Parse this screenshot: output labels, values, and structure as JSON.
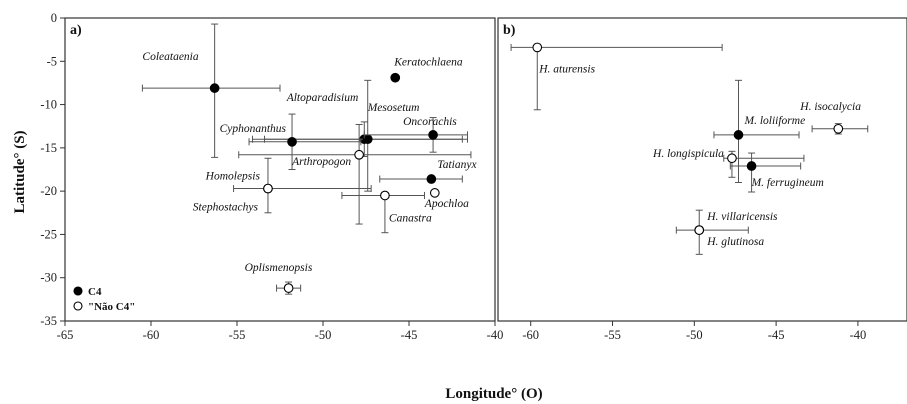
{
  "chart_data": {
    "type": "scatter",
    "xlabel": "Longitude° (O)",
    "ylabel": "Latitude° (S)",
    "xlim": [
      -65,
      -37
    ],
    "ylim": [
      -35,
      0
    ],
    "x_ticks": [
      "-65",
      "-60",
      "-55",
      "-50",
      "-45",
      "-40"
    ],
    "x_ticks_b": [
      "-60",
      "-55",
      "-50",
      "-45",
      "-40"
    ],
    "y_ticks": [
      "0",
      "-5",
      "-10",
      "-15",
      "-20",
      "-25",
      "-30",
      "-35"
    ],
    "legend": {
      "placement": "bottom-left",
      "entries": [
        {
          "label": "C4",
          "marker": "filled"
        },
        {
          "label": "\"Não C4\"",
          "marker": "open"
        }
      ]
    },
    "panels": [
      {
        "id": "a",
        "label": "a)",
        "xlim": [
          -65,
          -40
        ],
        "points": [
          {
            "name": "Coleataenia",
            "x": -56.3,
            "y": -8.1,
            "xerr": [
              4.2,
              3.8
            ],
            "yerr": [
              7.4,
              8.0
            ],
            "group": "C4"
          },
          {
            "name": "Keratochlaena",
            "x": -45.8,
            "y": -6.9,
            "xerr": [
              0,
              0
            ],
            "yerr": [
              0,
              0
            ],
            "group": "C4"
          },
          {
            "name": "Altoparadisium",
            "x": -47.6,
            "y": -14.0,
            "xerr": [
              6.5,
              6.0
            ],
            "yerr": [
              2.0,
              2.0
            ],
            "group": "C4"
          },
          {
            "name": "Mesosetum",
            "x": -47.4,
            "y": -14.0,
            "xerr": [
              6.0,
              5.5
            ],
            "yerr": [
              6.8,
              6.0
            ],
            "group": "C4"
          },
          {
            "name": "Cyphonanthus",
            "x": -51.8,
            "y": -14.3,
            "xerr": [
              2.5,
              4.0
            ],
            "yerr": [
              3.2,
              3.2
            ],
            "group": "C4"
          },
          {
            "name": "Oncorachis",
            "x": -43.6,
            "y": -13.5,
            "xerr": [
              4.0,
              2.0
            ],
            "yerr": [
              2.0,
              2.0
            ],
            "group": "C4"
          },
          {
            "name": "Tatianyx",
            "x": -43.7,
            "y": -18.6,
            "xerr": [
              3.0,
              1.8
            ],
            "yerr": [
              0,
              0
            ],
            "group": "C4"
          },
          {
            "name": "Arthropogon",
            "x": -47.9,
            "y": -15.8,
            "xerr": [
              7.0,
              6.5
            ],
            "yerr": [
              3.5,
              8.0
            ],
            "group": "Não C4"
          },
          {
            "name": "Homolepsis",
            "x": -53.2,
            "y": -19.7,
            "xerr": [
              2.0,
              6.0
            ],
            "yerr": [
              3.5,
              2.8
            ],
            "group": "Não C4"
          },
          {
            "name": "Canastra",
            "x": -46.4,
            "y": -20.5,
            "xerr": [
              2.5,
              2.3
            ],
            "yerr": [
              0,
              4.3
            ],
            "group": "Não C4"
          },
          {
            "name": "Apochloa",
            "x": -43.5,
            "y": -20.2,
            "xerr": [
              0,
              0
            ],
            "yerr": [
              0,
              0
            ],
            "group": "Não C4"
          },
          {
            "name": "Stephostachys",
            "x": -53.2,
            "y": -19.7,
            "xerr": [
              0,
              0
            ],
            "yerr": [
              0,
              0
            ],
            "group": "Não C4"
          },
          {
            "name": "Oplismenopsis",
            "x": -52.0,
            "y": -31.2,
            "xerr": [
              0.7,
              0.7
            ],
            "yerr": [
              0.7,
              0.7
            ],
            "group": "Não C4"
          }
        ]
      },
      {
        "id": "b",
        "label": "b)",
        "xlim": [
          -62,
          -37
        ],
        "points": [
          {
            "name": "H. aturensis",
            "x": -59.6,
            "y": -3.4,
            "xerr": [
              1.6,
              11.3
            ],
            "yerr": [
              0,
              7.2
            ],
            "group": "Não C4"
          },
          {
            "name": "M. loliiforme",
            "x": -47.3,
            "y": -13.5,
            "xerr": [
              1.5,
              3.7
            ],
            "yerr": [
              6.3,
              5.5
            ],
            "group": "C4"
          },
          {
            "name": "H. isocalycia",
            "x": -41.2,
            "y": -12.8,
            "xerr": [
              1.6,
              1.8
            ],
            "yerr": [
              0.6,
              0.6
            ],
            "group": "Não C4"
          },
          {
            "name": "H. longispicula",
            "x": -47.7,
            "y": -16.2,
            "xerr": [
              0.5,
              4.4
            ],
            "yerr": [
              0.8,
              2.2
            ],
            "group": "Não C4"
          },
          {
            "name": "M. ferrugineum",
            "x": -46.5,
            "y": -17.1,
            "xerr": [
              1.3,
              3.0
            ],
            "yerr": [
              1.5,
              3.0
            ],
            "group": "C4"
          },
          {
            "name": "H. villaricensis",
            "x": -49.7,
            "y": -24.5,
            "xerr": [
              1.4,
              3.0
            ],
            "yerr": [
              2.3,
              2.8
            ],
            "group": "Não C4"
          },
          {
            "name": "H. glutinosa",
            "x": -49.7,
            "y": -24.5,
            "xerr": [
              0,
              0
            ],
            "yerr": [
              0,
              0
            ],
            "group": "Não C4"
          }
        ]
      }
    ]
  }
}
